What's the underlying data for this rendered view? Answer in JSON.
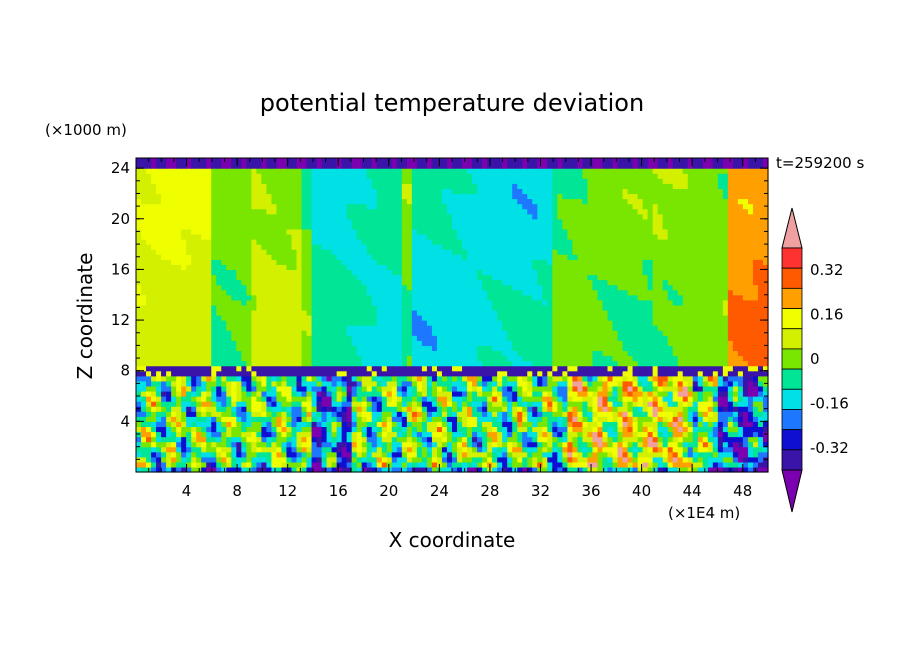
{
  "chart_data": {
    "type": "heatmap",
    "title": "potential temperature deviation",
    "xlabel": "X coordinate",
    "ylabel": "Z coordinate",
    "x_unit": "(×1E4 m)",
    "y_unit": "(×1000 m)",
    "time_label": "t=259200 s",
    "xlim": [
      0,
      50
    ],
    "ylim": [
      0,
      24.8
    ],
    "x_ticks": [
      4,
      8,
      12,
      16,
      20,
      24,
      28,
      32,
      36,
      40,
      44,
      48
    ],
    "y_ticks": [
      4,
      8,
      12,
      16,
      20,
      24
    ],
    "colorbar": {
      "levels": [
        -0.4,
        -0.32,
        -0.24,
        -0.16,
        -0.08,
        0,
        0.08,
        0.16,
        0.24,
        0.32,
        0.4
      ],
      "colors": [
        "#7a00b0",
        "#3a14a8",
        "#0f0fd2",
        "#1e78ff",
        "#00e1e6",
        "#00e696",
        "#78e600",
        "#d2f000",
        "#f0ff00",
        "#ff9f00",
        "#ff5a00",
        "#ff3232",
        "#f0a0a0"
      ],
      "tick_labels": [
        "0.32",
        "0.16",
        "0",
        "-0.16",
        "-0.32"
      ],
      "tick_values": [
        0.32,
        0.16,
        0,
        -0.16,
        -0.32
      ]
    },
    "description_fields": {
      "upper_layer": "mostly 0 to 0.08 with bands near -0.08 and 0.08 to 0.16 at left and 0.24 to 0.32 at right edge",
      "lower_layer": "turbulent structure below z=8 with values spanning -0.4 to 0.4"
    }
  }
}
